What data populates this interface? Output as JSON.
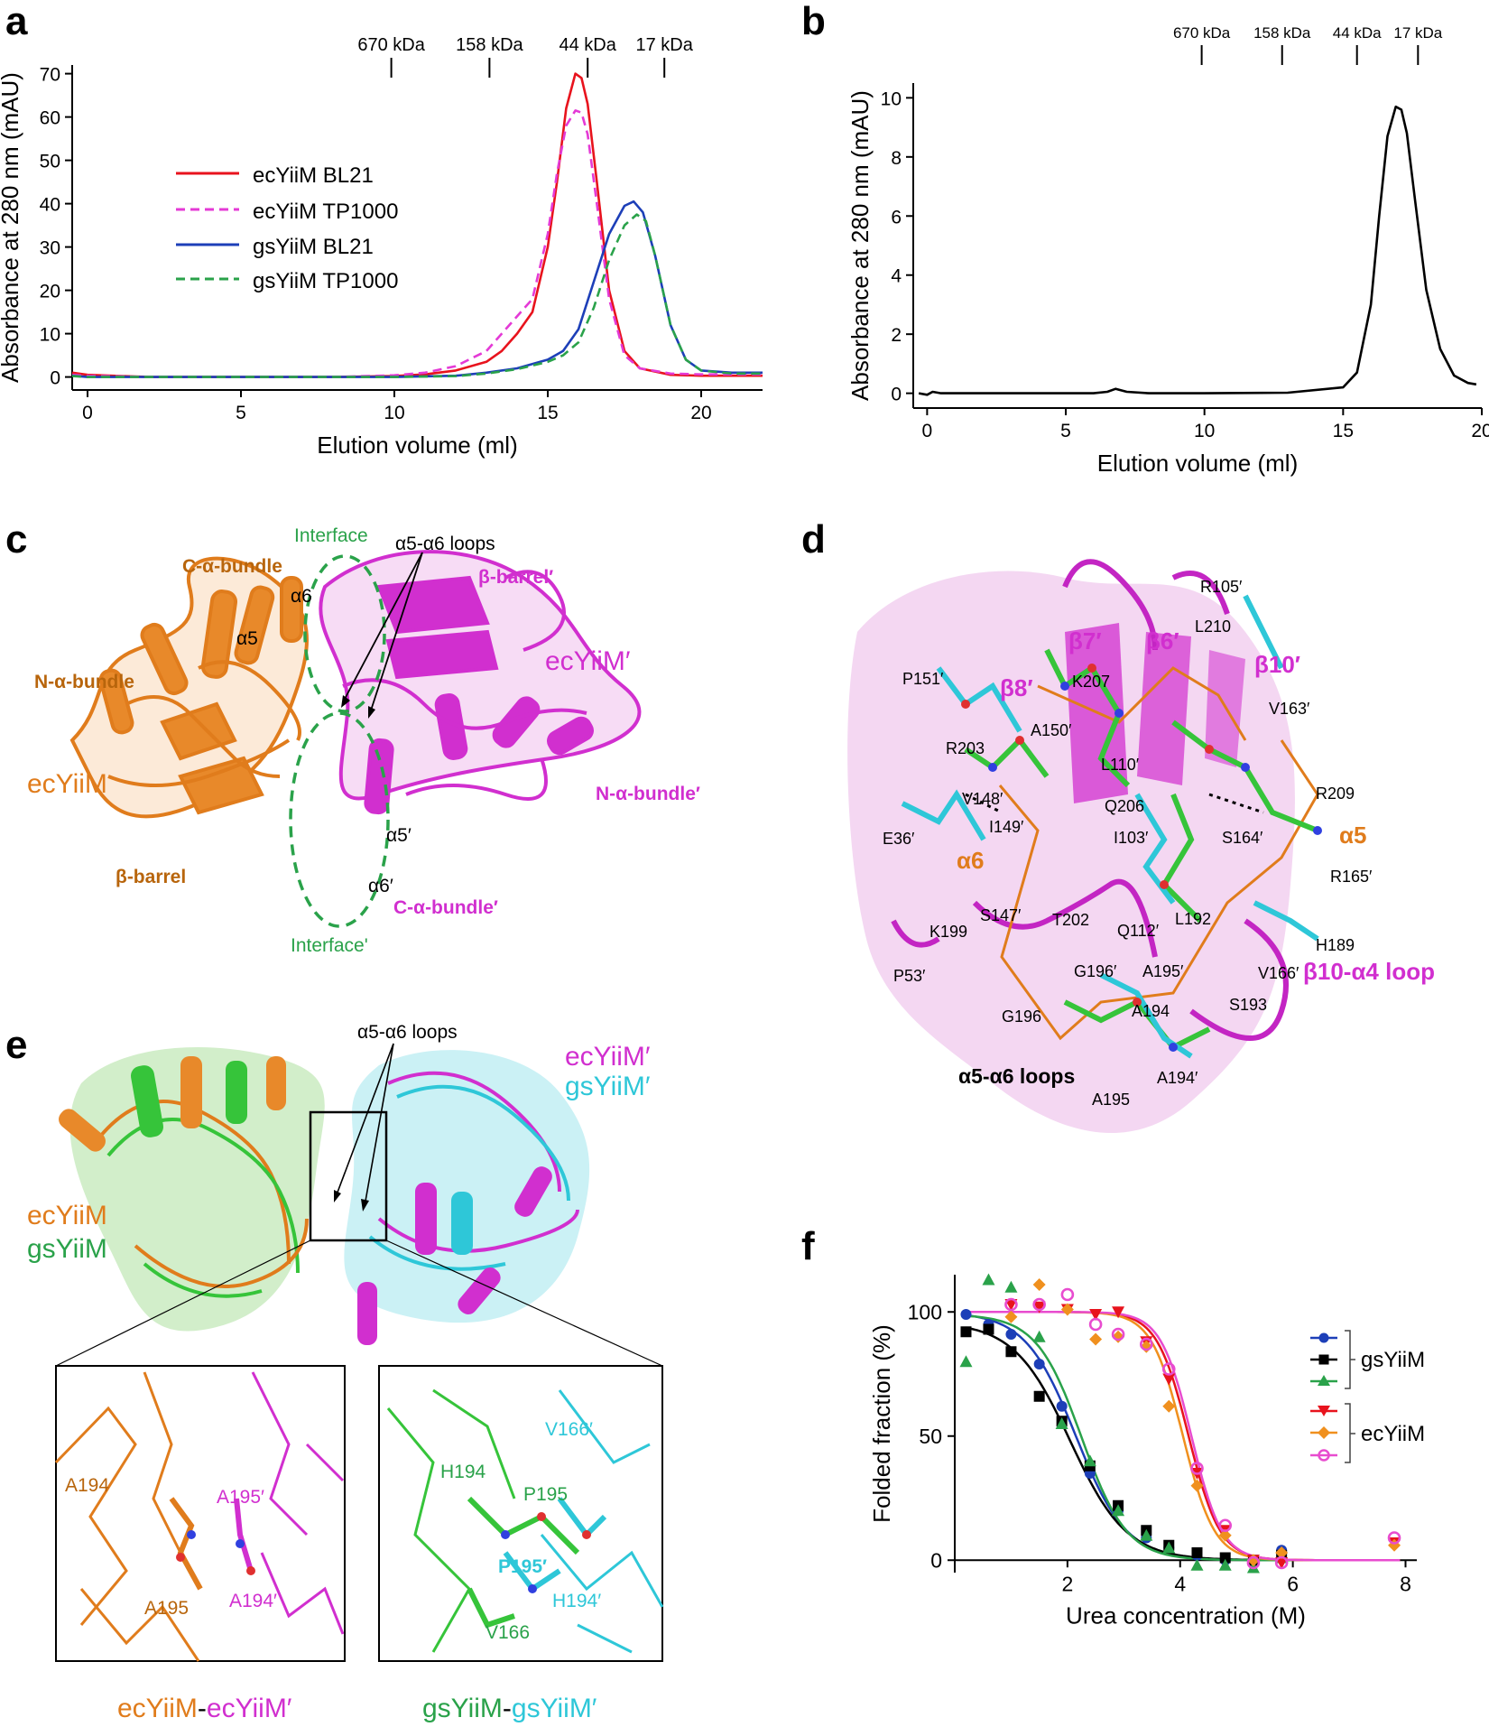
{
  "panels": {
    "a": "a",
    "b": "b",
    "c": "c",
    "d": "d",
    "e": "e",
    "f": "f"
  },
  "colors": {
    "red": "#e8131d",
    "magenta": "#e43ad6",
    "blue": "#1d3fb8",
    "green": "#2aa24a",
    "orange": "#e07c1c",
    "purple": "#d12fcf",
    "cyan": "#2ec7d8",
    "lime": "#36c43a",
    "interface_green": "#2aa24a"
  },
  "chart_data": [
    {
      "panel": "a",
      "type": "line",
      "xlabel": "Elution volume (ml)",
      "ylabel": "Absorbance at 280 nm (mAU)",
      "xlim": [
        -0.5,
        22
      ],
      "ylim": [
        -3,
        72
      ],
      "xticks": [
        0,
        5,
        10,
        15,
        20
      ],
      "yticks": [
        0,
        10,
        20,
        30,
        40,
        50,
        60,
        70
      ],
      "markers": [
        {
          "label": "670 kDa",
          "x": 9.9
        },
        {
          "label": "158 kDa",
          "x": 13.1
        },
        {
          "label": "44 kDa",
          "x": 16.3
        },
        {
          "label": "17 kDa",
          "x": 18.8
        }
      ],
      "legend_position": "upper-left",
      "series": [
        {
          "name": "ecYiiM BL21",
          "color": "#e8131d",
          "dash": "solid",
          "x": [
            -0.5,
            0,
            2,
            5,
            8,
            10,
            11,
            12,
            13,
            13.5,
            14,
            14.5,
            15,
            15.3,
            15.6,
            15.9,
            16.1,
            16.3,
            16.6,
            17,
            17.5,
            18,
            19,
            20,
            22
          ],
          "y": [
            1,
            0.5,
            0,
            0,
            0,
            0.2,
            0.6,
            1.5,
            3.5,
            6,
            10,
            15,
            30,
            45,
            62,
            70,
            69,
            63,
            45,
            20,
            6,
            2,
            0.5,
            0.3,
            0.3
          ]
        },
        {
          "name": "ecYiiM TP1000",
          "color": "#e43ad6",
          "dash": "dashed",
          "x": [
            -0.5,
            0,
            2,
            5,
            8,
            10,
            11,
            12,
            13,
            13.5,
            14,
            14.5,
            15,
            15.3,
            15.6,
            15.9,
            16.1,
            16.3,
            16.6,
            17,
            17.5,
            18,
            19,
            20,
            22
          ],
          "y": [
            0.5,
            0.3,
            0,
            0,
            0,
            0.4,
            1,
            2.5,
            6,
            10,
            14,
            18,
            33,
            47,
            58,
            61.5,
            61,
            56,
            40,
            18,
            5,
            2,
            0.8,
            0.6,
            0.6
          ]
        },
        {
          "name": "gsYiiM BL21",
          "color": "#1d3fb8",
          "dash": "solid",
          "x": [
            -0.5,
            0,
            5,
            10,
            12,
            13,
            14,
            15,
            15.5,
            16,
            16.5,
            17,
            17.5,
            17.8,
            18.1,
            18.5,
            19,
            19.5,
            20,
            21,
            22
          ],
          "y": [
            0.3,
            0,
            0,
            0,
            0.3,
            1,
            2,
            4,
            6,
            11,
            22,
            33,
            39.5,
            40.5,
            38,
            28,
            12,
            4,
            1.5,
            1,
            1
          ]
        },
        {
          "name": "gsYiiM TP1000",
          "color": "#2aa24a",
          "dash": "dashed",
          "x": [
            -0.5,
            0,
            5,
            10,
            12,
            13,
            14,
            15,
            15.5,
            16,
            16.5,
            17,
            17.5,
            17.9,
            18.2,
            18.5,
            19,
            19.5,
            20,
            21,
            22
          ],
          "y": [
            0.2,
            0,
            0,
            0,
            0.2,
            0.8,
            1.8,
            3.5,
            5,
            8,
            16,
            27,
            35,
            37.5,
            36,
            28,
            12,
            4,
            1.5,
            0.8,
            0.8
          ]
        }
      ]
    },
    {
      "panel": "b",
      "type": "line",
      "xlabel": "Elution volume (ml)",
      "ylabel": "Absorbance at 280 nm (mAU)",
      "xlim": [
        -0.5,
        20
      ],
      "ylim": [
        -0.5,
        10.5
      ],
      "xticks": [
        0,
        5,
        10,
        15,
        20
      ],
      "yticks": [
        0,
        2,
        4,
        6,
        8,
        10
      ],
      "markers": [
        {
          "label": "670 kDa",
          "x": 9.9
        },
        {
          "label": "158 kDa",
          "x": 12.8
        },
        {
          "label": "44 kDa",
          "x": 15.5
        },
        {
          "label": "17 kDa",
          "x": 17.7
        }
      ],
      "series": [
        {
          "name": "",
          "color": "#000000",
          "dash": "solid",
          "x": [
            -0.3,
            0,
            0.2,
            0.5,
            3,
            6,
            6.5,
            6.8,
            7.2,
            8,
            10,
            13,
            15,
            15.5,
            16,
            16.3,
            16.6,
            16.9,
            17.1,
            17.3,
            17.6,
            18,
            18.5,
            19,
            19.5,
            19.8
          ],
          "y": [
            0,
            -0.05,
            0.05,
            0,
            0,
            0,
            0.05,
            0.15,
            0.05,
            0,
            0,
            0.02,
            0.2,
            0.7,
            3,
            6,
            8.7,
            9.7,
            9.6,
            8.8,
            6.5,
            3.5,
            1.5,
            0.6,
            0.35,
            0.3
          ]
        }
      ]
    },
    {
      "panel": "f",
      "type": "scatter",
      "xlabel": "Urea concentration (M)",
      "ylabel": "Folded fraction (%)",
      "xlim": [
        0,
        8.2
      ],
      "ylim": [
        -5,
        115
      ],
      "xticks": [
        2,
        4,
        6,
        8
      ],
      "yticks": [
        0,
        50,
        100
      ],
      "legend_position": "right",
      "groups": [
        {
          "label": "gsYiiM",
          "members": [
            0,
            1,
            2
          ]
        },
        {
          "label": "ecYiiM",
          "members": [
            3,
            4,
            5
          ]
        }
      ],
      "series": [
        {
          "name": "",
          "color": "#1d3fb8",
          "marker": "circle",
          "x": [
            0.2,
            0.6,
            1.0,
            1.5,
            1.9,
            2.4,
            2.9,
            3.4,
            3.8,
            4.3,
            4.8,
            5.3,
            5.8
          ],
          "y": [
            99,
            95,
            91,
            79,
            62,
            35,
            20,
            9,
            5,
            2,
            0,
            -1,
            4
          ],
          "fit": {
            "top": 100,
            "bottom": 0,
            "mid": 2.15,
            "slope": 0.45
          }
        },
        {
          "name": "",
          "color": "#000000",
          "marker": "square",
          "x": [
            0.2,
            0.6,
            1.0,
            1.5,
            1.9,
            2.4,
            2.9,
            3.4,
            3.8,
            4.3,
            4.8,
            5.3,
            5.8
          ],
          "y": [
            92,
            93,
            84,
            66,
            56,
            38,
            22,
            12,
            6,
            3,
            1,
            0,
            2
          ],
          "fit": {
            "top": 96,
            "bottom": 0,
            "mid": 2.05,
            "slope": 0.5
          }
        },
        {
          "name": "",
          "color": "#2aa24a",
          "marker": "triangle",
          "x": [
            0.2,
            0.6,
            1.0,
            1.5,
            1.9,
            2.4,
            2.9,
            3.4,
            3.8,
            4.3,
            4.8,
            5.3,
            5.8
          ],
          "y": [
            80,
            113,
            110,
            90,
            55,
            40,
            20,
            10,
            5,
            -2,
            -2,
            -3,
            1
          ],
          "fit": {
            "top": 99,
            "bottom": 0,
            "mid": 2.25,
            "slope": 0.4
          }
        },
        {
          "name": "",
          "color": "#e8131d",
          "marker": "triangle-down",
          "x": [
            1.0,
            1.5,
            2.0,
            2.5,
            2.9,
            3.4,
            3.8,
            4.3,
            4.8,
            5.3,
            5.8,
            7.8
          ],
          "y": [
            103,
            102,
            101,
            99,
            100,
            88,
            73,
            35,
            12,
            0,
            -1,
            7
          ],
          "fit": {
            "top": 100,
            "bottom": 0,
            "mid": 4.15,
            "slope": 0.28
          }
        },
        {
          "name": "",
          "color": "#f0901e",
          "marker": "diamond",
          "x": [
            1.0,
            1.5,
            2.0,
            2.5,
            2.9,
            3.4,
            3.8,
            4.3,
            4.8,
            5.3,
            5.8,
            7.8
          ],
          "y": [
            98,
            111,
            101,
            89,
            90,
            86,
            62,
            30,
            10,
            0,
            3,
            6
          ],
          "fit": {
            "top": 100,
            "bottom": 0,
            "mid": 4.05,
            "slope": 0.28
          }
        },
        {
          "name": "",
          "color": "#e84ccf",
          "marker": "circle-open",
          "x": [
            1.0,
            1.5,
            2.0,
            2.5,
            2.9,
            3.4,
            3.8,
            4.3,
            4.8,
            5.3,
            5.8,
            7.8
          ],
          "y": [
            103,
            103,
            107,
            95,
            91,
            87,
            77,
            37,
            14,
            -1,
            -1,
            9
          ],
          "fit": {
            "top": 100,
            "bottom": 0,
            "mid": 4.2,
            "slope": 0.27
          }
        }
      ]
    }
  ],
  "panel_c": {
    "interface": "Interface",
    "interface_prime": "Interface'",
    "loops": "α5-α6 loops",
    "c_alpha_bundle": "C-α-bundle",
    "n_alpha_bundle": "N-α-bundle",
    "beta_barrel": "β-barrel",
    "ecyiim": "ecYiiM",
    "a6": "α6",
    "a5": "α5",
    "beta_barrel_prime": "β-barrel′",
    "ecyiim_prime": "ecYiiM′",
    "n_alpha_bundle_prime": "N-α-bundle′",
    "a5_prime": "α5′",
    "a6_prime": "α6′",
    "c_alpha_bundle_prime": "C-α-bundle′"
  },
  "panel_d": {
    "r105": "R105′",
    "l210": "L210",
    "b7": "β7′",
    "b6": "β6′",
    "b10": "β10′",
    "p151": "P151′",
    "k207": "K207",
    "b8": "β8′",
    "v163": "V163′",
    "a150": "A150′",
    "r203": "R203",
    "l110": "L110′",
    "q206": "Q206",
    "r209": "R209",
    "v148": "V148′",
    "i103": "I103′",
    "s164": "S164′",
    "e36": "E36′",
    "i149": "I149′",
    "a5": "α5",
    "a6": "α6",
    "r165": "R165′",
    "l192": "L192",
    "s147": "S147′",
    "t202": "T202",
    "q112": "Q112′",
    "h189": "H189",
    "k199": "K199",
    "v166": "V166′",
    "p53": "P53′",
    "g196p": "G196′",
    "a195p": "A195′",
    "loop": "β10-α4 loop",
    "a194": "A194",
    "s193": "S193",
    "g196": "G196",
    "loops": "α5-α6 loops",
    "a194p": "A194′",
    "a195": "A195"
  },
  "panel_e": {
    "loops": "α5-α6 loops",
    "ecyiim_prime": "ecYiiM′",
    "gsyiim_prime": "gsYiiM′",
    "ecyiim": "ecYiiM",
    "gsyiim": "gsYiiM",
    "left_a194": "A194",
    "left_a195p": "A195′",
    "left_a195": "A195",
    "left_a194p": "A194′",
    "right_v166p": "V166′",
    "right_h194": "H194",
    "right_p195": "P195",
    "right_p195p": "P195′",
    "right_h194p": "H194′",
    "right_v166": "V166",
    "caption_left_a": "ecYiiM",
    "caption_left_b": "-",
    "caption_left_c": "ecYiiM′",
    "caption_right_a": "gsYiiM",
    "caption_right_b": "-",
    "caption_right_c": "gsYiiM′"
  }
}
